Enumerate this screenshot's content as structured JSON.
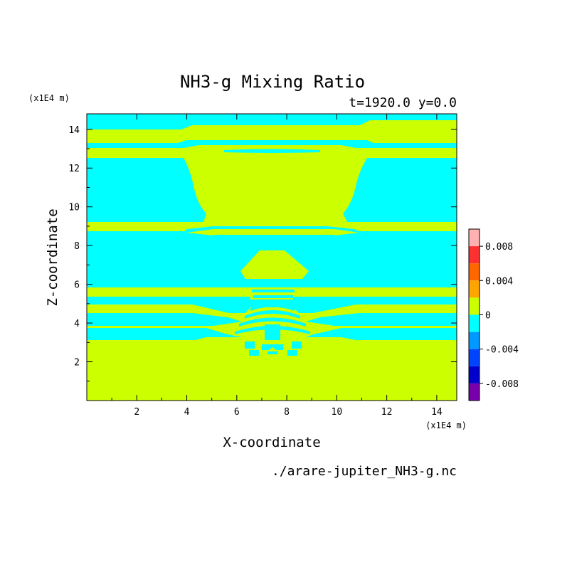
{
  "chart_data": {
    "type": "heatmap",
    "title": "NH3-g Mixing Ratio",
    "subtitle": "t=1920.0 y=0.0",
    "xlabel": "X-coordinate",
    "ylabel": "Z-coordinate",
    "x_unit": "(x1E4 m)",
    "y_unit": "(x1E4 m)",
    "xlim": [
      0,
      14.8
    ],
    "ylim": [
      0,
      14.8
    ],
    "x_ticks": [
      "2",
      "4",
      "6",
      "8",
      "10",
      "12",
      "14"
    ],
    "y_ticks": [
      "2",
      "4",
      "6",
      "8",
      "10",
      "12",
      "14"
    ],
    "filename": "./arare-jupiter_NH3-g.nc",
    "colorbar": {
      "labels": [
        "0.008",
        "0.004",
        "0",
        "-0.004",
        "-0.008"
      ],
      "levels": [
        0.01,
        0.008,
        0.006,
        0.004,
        0.002,
        0,
        -0.002,
        -0.004,
        -0.006,
        -0.008,
        -0.01
      ],
      "colors": [
        "#ffb0b0",
        "#ff3030",
        "#ff6600",
        "#ffa500",
        "#ccff00",
        "#00ffff",
        "#0099ff",
        "#0044ff",
        "#0000cc",
        "#7700aa"
      ]
    },
    "colors": {
      "positive_small": "#ccff00",
      "negative_small": "#00ffff"
    },
    "field_description": "Mostly near-zero mixing-ratio field; yellow-green (0 to 0.002) and cyan (-0.002 to 0) regions.",
    "cyan_bands": [
      {
        "x0": 0,
        "x1": 14.8,
        "z0": 13.9,
        "z1": 14.8
      },
      {
        "x0": 0,
        "x1": 14.8,
        "z0": 12.6,
        "z1": 13.3
      },
      {
        "x0": 0,
        "x1": 4.2,
        "z0": 9.2,
        "z1": 12.6
      },
      {
        "x0": 10.9,
        "x1": 14.8,
        "z0": 9.2,
        "z1": 12.6
      },
      {
        "x0": 0,
        "x1": 14.8,
        "z0": 6.0,
        "z1": 8.8
      },
      {
        "x0": 0,
        "x1": 14.8,
        "z0": 5.0,
        "z1": 5.4
      },
      {
        "x0": 0,
        "x1": 14.8,
        "z0": 4.3,
        "z1": 4.7
      },
      {
        "x0": 0,
        "x1": 14.8,
        "z0": 3.5,
        "z1": 3.9
      }
    ]
  }
}
